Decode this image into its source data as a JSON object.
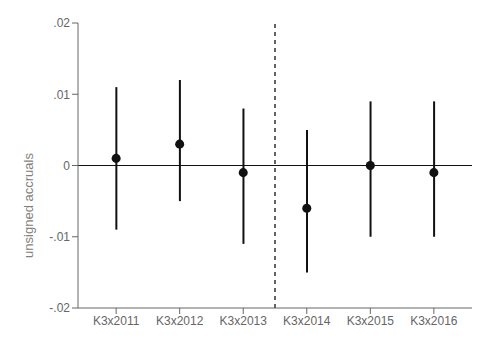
{
  "chart_data": {
    "type": "scatter",
    "categories": [
      "K3x2011",
      "K3x2012",
      "K3x2013",
      "K3x2014",
      "K3x2015",
      "K3x2016"
    ],
    "values": [
      0.001,
      0.003,
      -0.001,
      -0.006,
      0.0,
      -0.001
    ],
    "ci_lower": [
      -0.009,
      -0.005,
      -0.011,
      -0.015,
      -0.01,
      -0.01
    ],
    "ci_upper": [
      0.011,
      0.012,
      0.008,
      0.005,
      0.009,
      0.009
    ],
    "color": "#111111",
    "ylabel": "unsigned accruals",
    "ylim": [
      -0.02,
      0.02
    ],
    "yticks": [
      {
        "value": -0.02,
        "label": "-.02"
      },
      {
        "value": -0.01,
        "label": "-.01"
      },
      0,
      {
        "value": 0.01,
        "label": ".01"
      },
      {
        "value": 0.02,
        "label": ".02"
      }
    ],
    "grid": false,
    "reference_line_y": 0,
    "separator_after": "K3x2013"
  }
}
